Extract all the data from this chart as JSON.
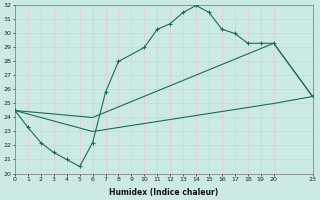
{
  "xlabel": "Humidex (Indice chaleur)",
  "xlim": [
    0,
    23
  ],
  "ylim": [
    20,
    32
  ],
  "xticks": [
    0,
    1,
    2,
    3,
    4,
    5,
    6,
    7,
    8,
    9,
    10,
    11,
    12,
    13,
    14,
    15,
    16,
    17,
    18,
    19,
    20,
    23
  ],
  "yticks": [
    20,
    21,
    22,
    23,
    24,
    25,
    26,
    27,
    28,
    29,
    30,
    31,
    32
  ],
  "bg_color": "#cceae4",
  "line_color": "#1a6b5a",
  "grid_color": "#e8c8c8",
  "series1_x": [
    0,
    1,
    2,
    3,
    4,
    5,
    6,
    7,
    8,
    10,
    11,
    12,
    13,
    14,
    15,
    16,
    17,
    18,
    19,
    20,
    23
  ],
  "series1_y": [
    24.5,
    23.3,
    22.2,
    21.5,
    21.0,
    20.5,
    22.2,
    25.8,
    28.0,
    29.0,
    30.3,
    30.7,
    31.5,
    32.0,
    31.5,
    30.3,
    30.0,
    29.3,
    29.3,
    29.3,
    25.5
  ],
  "series2_x": [
    0,
    6,
    20,
    23
  ],
  "series2_y": [
    24.5,
    24.0,
    29.3,
    25.5
  ],
  "series3_x": [
    0,
    6,
    20,
    23
  ],
  "series3_y": [
    24.5,
    23.0,
    25.0,
    25.5
  ]
}
